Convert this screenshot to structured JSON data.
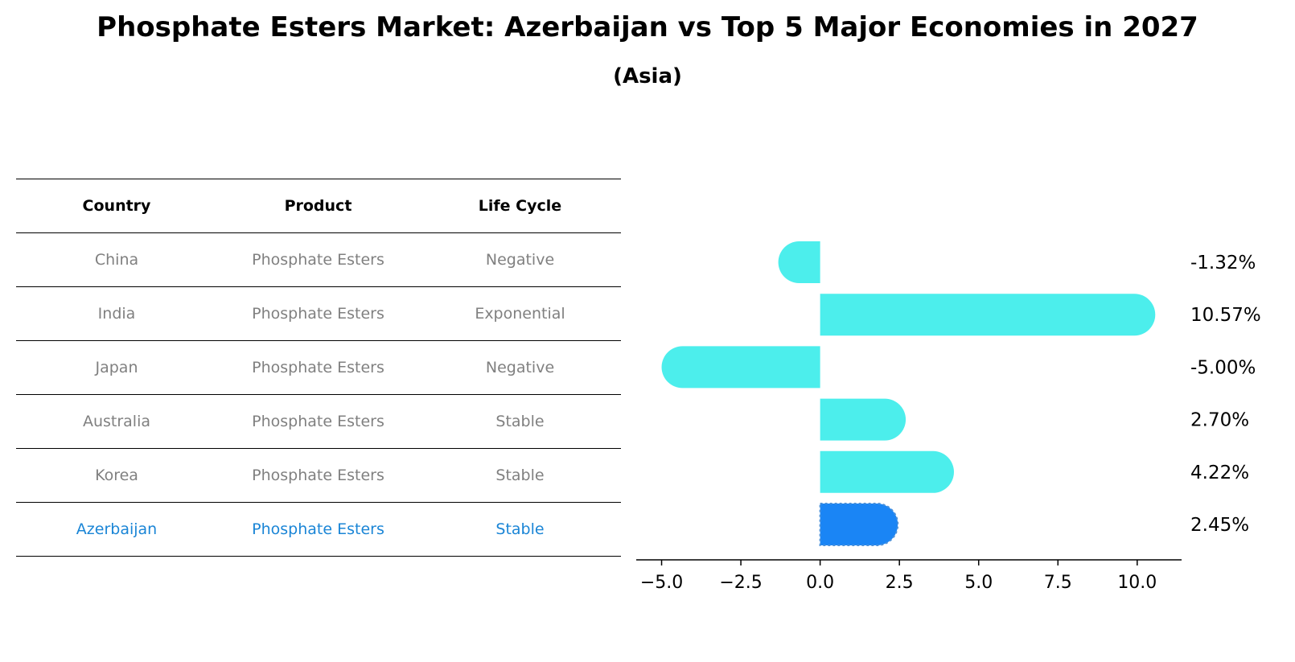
{
  "title": "Phosphate Esters Market: Azerbaijan vs Top 5 Major Economies in 2027",
  "subtitle": "(Asia)",
  "table": {
    "headers": [
      "Country",
      "Product",
      "Life Cycle"
    ],
    "rows": [
      {
        "country": "China",
        "product": "Phosphate Esters",
        "life_cycle": "Negative"
      },
      {
        "country": "India",
        "product": "Phosphate Esters",
        "life_cycle": "Exponential"
      },
      {
        "country": "Japan",
        "product": "Phosphate Esters",
        "life_cycle": "Negative"
      },
      {
        "country": "Australia",
        "product": "Phosphate Esters",
        "life_cycle": "Stable"
      },
      {
        "country": "Korea",
        "product": "Phosphate Esters",
        "life_cycle": "Stable"
      },
      {
        "country": "Azerbaijan",
        "product": "Phosphate Esters",
        "life_cycle": "Stable"
      }
    ]
  },
  "colors": {
    "bar": "#4ceeec",
    "highlight_bar": "#1a85f5",
    "highlight_text": "#1a85d6",
    "muted_text": "#808080"
  },
  "chart_data": {
    "type": "bar",
    "orientation": "horizontal",
    "categories": [
      "China",
      "India",
      "Japan",
      "Australia",
      "Korea",
      "Azerbaijan"
    ],
    "values": [
      -1.32,
      10.57,
      -5.0,
      2.7,
      4.22,
      2.45
    ],
    "value_labels": [
      "-1.32%",
      "10.57%",
      "-5.00%",
      "2.70%",
      "4.22%",
      "2.45%"
    ],
    "highlight": "Azerbaijan",
    "xlim": [
      -5.8,
      11.4
    ],
    "xticks": [
      -5.0,
      -2.5,
      0.0,
      2.5,
      5.0,
      7.5,
      10.0
    ],
    "xtick_labels": [
      "−5.0",
      "−2.5",
      "0.0",
      "2.5",
      "5.0",
      "7.5",
      "10.0"
    ],
    "grid": false
  }
}
